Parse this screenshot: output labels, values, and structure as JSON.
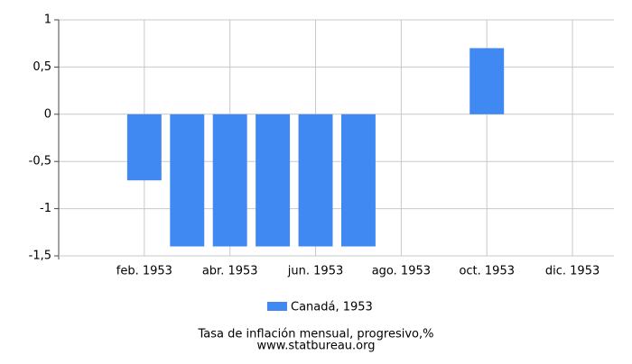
{
  "chart_data": {
    "type": "bar",
    "title": "Tasa de inflación mensual, progresivo,%",
    "source": "www.statbureau.org",
    "categories": [
      null,
      "feb. 1953",
      null,
      "abr. 1953",
      null,
      "jun. 1953",
      null,
      "ago. 1953",
      null,
      "oct. 1953",
      null,
      "dic. 1953"
    ],
    "series": [
      {
        "name": "Canadá, 1953",
        "color": "#4189f2",
        "values": [
          0,
          -0.7,
          -1.4,
          -1.4,
          -1.4,
          -1.4,
          -1.4,
          0,
          0,
          0.7,
          0,
          0
        ]
      }
    ],
    "ylim": [
      -1.5,
      1
    ],
    "yticks": [
      {
        "value": -1.5,
        "label": "-1,5"
      },
      -1,
      {
        "value": -0.5,
        "label": "-0,5"
      },
      0,
      {
        "value": 0.5,
        "label": "0,5"
      },
      1
    ],
    "grid": true,
    "legend": "bottom"
  }
}
